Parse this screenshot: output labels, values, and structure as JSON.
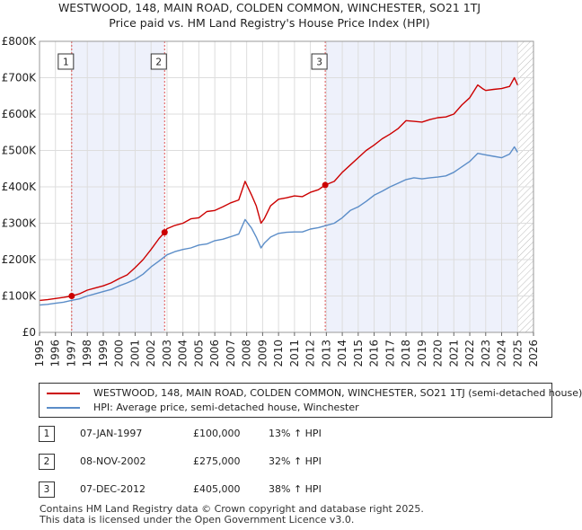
{
  "chart_data": {
    "type": "line",
    "title": "WESTWOOD, 148, MAIN ROAD, COLDEN COMMON, WINCHESTER, SO21 1TJ",
    "subtitle": "Price paid vs. HM Land Registry's House Price Index (HPI)",
    "xlabel": "",
    "ylabel": "",
    "xlim": [
      1995,
      2026
    ],
    "ylim": [
      0,
      800000
    ],
    "x_ticks": [
      1995,
      1996,
      1997,
      1998,
      1999,
      2000,
      2001,
      2002,
      2003,
      2004,
      2005,
      2006,
      2007,
      2008,
      2009,
      2010,
      2011,
      2012,
      2013,
      2014,
      2015,
      2016,
      2017,
      2018,
      2019,
      2020,
      2021,
      2022,
      2023,
      2024,
      2025,
      2026
    ],
    "x_tick_labels": [
      "1995",
      "1996",
      "1997",
      "1998",
      "1999",
      "2000",
      "2001",
      "2002",
      "2003",
      "2004",
      "2005",
      "2006",
      "2007",
      "2008",
      "2009",
      "2010",
      "2011",
      "2012",
      "2013",
      "2014",
      "2015",
      "2016",
      "2017",
      "2018",
      "2019",
      "2020",
      "2021",
      "2022",
      "2023",
      "2024",
      "2025",
      "2026"
    ],
    "y_ticks": [
      0,
      100000,
      200000,
      300000,
      400000,
      500000,
      600000,
      700000,
      800000
    ],
    "y_tick_labels": [
      "£0",
      "£100K",
      "£200K",
      "£300K",
      "£400K",
      "£500K",
      "£600K",
      "£700K",
      "£800K"
    ],
    "grid": true,
    "series": [
      {
        "name": "WESTWOOD, 148, MAIN ROAD, COLDEN COMMON, WINCHESTER, SO21 1TJ (semi-detached house)",
        "color": "#cc0000",
        "x": [
          1995.0,
          1995.5,
          1996.0,
          1996.5,
          1997.02,
          1997.5,
          1998.0,
          1998.5,
          1999.0,
          1999.5,
          2000.0,
          2000.5,
          2001.0,
          2001.5,
          2002.0,
          2002.5,
          2002.85,
          2003.0,
          2003.5,
          2004.0,
          2004.5,
          2005.0,
          2005.5,
          2006.0,
          2006.5,
          2007.0,
          2007.5,
          2007.9,
          2008.3,
          2008.6,
          2008.9,
          2009.1,
          2009.5,
          2010.0,
          2010.5,
          2011.0,
          2011.5,
          2012.0,
          2012.5,
          2012.93,
          2013.5,
          2014.0,
          2014.5,
          2015.0,
          2015.5,
          2016.0,
          2016.5,
          2017.0,
          2017.5,
          2018.0,
          2018.5,
          2019.0,
          2019.5,
          2020.0,
          2020.5,
          2021.0,
          2021.5,
          2022.0,
          2022.5,
          2022.8,
          2023.0,
          2023.5,
          2024.0,
          2024.5,
          2024.8,
          2025.0
        ],
        "values": [
          88000,
          90000,
          93000,
          96000,
          100000,
          106000,
          116000,
          122000,
          128000,
          136000,
          148000,
          158000,
          178000,
          200000,
          228000,
          258000,
          275000,
          285000,
          294000,
          300000,
          312000,
          315000,
          332000,
          335000,
          345000,
          356000,
          364000,
          415000,
          378000,
          348000,
          300000,
          312000,
          348000,
          366000,
          370000,
          375000,
          373000,
          385000,
          392000,
          405000,
          415000,
          440000,
          460000,
          480000,
          500000,
          515000,
          532000,
          545000,
          560000,
          582000,
          580000,
          578000,
          585000,
          590000,
          592000,
          600000,
          625000,
          645000,
          680000,
          670000,
          665000,
          668000,
          670000,
          676000,
          700000,
          680000
        ]
      },
      {
        "name": "HPI: Average price, semi-detached house, Winchester",
        "color": "#5b8dc8",
        "x": [
          1995.0,
          1995.5,
          1996.0,
          1996.5,
          1997.0,
          1997.5,
          1998.0,
          1998.5,
          1999.0,
          1999.5,
          2000.0,
          2000.5,
          2001.0,
          2001.5,
          2002.0,
          2002.5,
          2003.0,
          2003.5,
          2004.0,
          2004.5,
          2005.0,
          2005.5,
          2006.0,
          2006.5,
          2007.0,
          2007.5,
          2007.9,
          2008.3,
          2008.6,
          2008.9,
          2009.1,
          2009.5,
          2010.0,
          2010.5,
          2011.0,
          2011.5,
          2012.0,
          2012.5,
          2013.0,
          2013.5,
          2014.0,
          2014.5,
          2015.0,
          2015.5,
          2016.0,
          2016.5,
          2017.0,
          2017.5,
          2018.0,
          2018.5,
          2019.0,
          2019.5,
          2020.0,
          2020.5,
          2021.0,
          2021.5,
          2022.0,
          2022.5,
          2023.0,
          2023.5,
          2024.0,
          2024.5,
          2024.8,
          2025.0
        ],
        "values": [
          75000,
          77000,
          80000,
          83000,
          88000,
          92000,
          100000,
          106000,
          112000,
          118000,
          128000,
          136000,
          146000,
          160000,
          180000,
          196000,
          213000,
          222000,
          228000,
          232000,
          240000,
          243000,
          252000,
          256000,
          263000,
          270000,
          310000,
          287000,
          262000,
          232000,
          245000,
          262000,
          272000,
          275000,
          276000,
          276000,
          284000,
          288000,
          294000,
          300000,
          315000,
          335000,
          345000,
          360000,
          377000,
          388000,
          400000,
          410000,
          420000,
          425000,
          422000,
          425000,
          427000,
          430000,
          440000,
          455000,
          470000,
          492000,
          488000,
          484000,
          480000,
          490000,
          510000,
          495000
        ]
      }
    ],
    "vlines": [
      {
        "label": "1",
        "x": 1997.02
      },
      {
        "label": "2",
        "x": 2002.85
      },
      {
        "label": "3",
        "x": 2012.93
      }
    ],
    "sale_points": [
      {
        "x": 1997.02,
        "y": 100000
      },
      {
        "x": 2002.85,
        "y": 275000
      },
      {
        "x": 2012.93,
        "y": 405000
      }
    ],
    "forecast_start": 2025.0,
    "legend_position": "below"
  },
  "legend": {
    "property_label": "WESTWOOD, 148, MAIN ROAD, COLDEN COMMON, WINCHESTER, SO21 1TJ (semi-detached house)",
    "hpi_label": "HPI: Average price, semi-detached house, Winchester",
    "property_color": "#cc0000",
    "hpi_color": "#5b8dc8"
  },
  "sales": [
    {
      "num": "1",
      "date": "07-JAN-1997",
      "price": "£100,000",
      "hpi": "13% ↑ HPI"
    },
    {
      "num": "2",
      "date": "08-NOV-2002",
      "price": "£275,000",
      "hpi": "32% ↑ HPI"
    },
    {
      "num": "3",
      "date": "07-DEC-2012",
      "price": "£405,000",
      "hpi": "38% ↑ HPI"
    }
  ],
  "footer": {
    "line1": "Contains HM Land Registry data © Crown copyright and database right 2025.",
    "line2": "This data is licensed under the Open Government Licence v3.0."
  }
}
